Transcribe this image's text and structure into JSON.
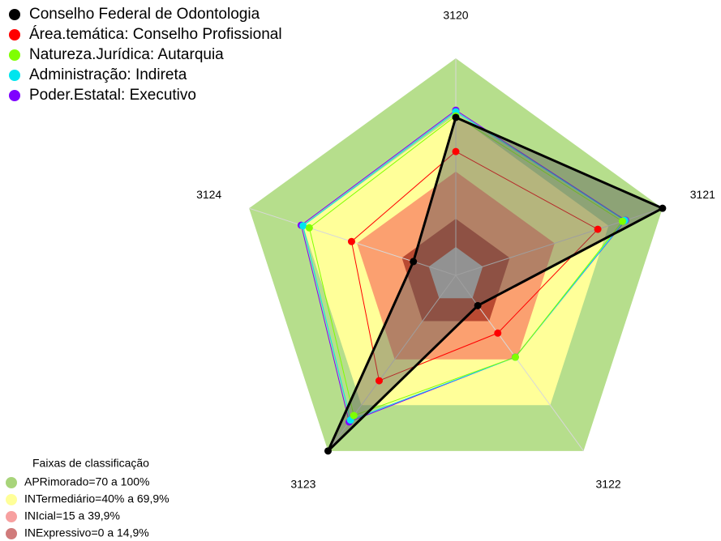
{
  "chart_data": {
    "type": "radar",
    "categories": [
      "3120",
      "3121",
      "3122",
      "3123",
      "3124"
    ],
    "rlim": [
      -15,
      100
    ],
    "series": [
      {
        "name": "Conselho Federal de Odontologia",
        "color": "#000000",
        "values": [
          68.7,
          100,
          4.8,
          100,
          8.6
        ]
      },
      {
        "name": "Área.temática: Conselho Profissional",
        "color": "#ff0000",
        "values": [
          50.6,
          64,
          22.8,
          54,
          43
        ]
      },
      {
        "name": "Natureza.Jurídica: Autarquia",
        "color": "#7fff00",
        "values": [
          69.5,
          77.7,
          38.6,
          76.8,
          66.5
        ]
      },
      {
        "name": "Administração: Indireta",
        "color": "#00e5ee",
        "values": [
          71.7,
          79,
          38.6,
          79.8,
          70
        ]
      },
      {
        "name": "Poder.Estatal: Executivo",
        "color": "#7f00ff",
        "values": [
          72.5,
          79.4,
          38.5,
          81,
          71
        ]
      }
    ],
    "bands_title": "Faixas de classificação",
    "bands": [
      {
        "label": "APRimorado=70 a 100%",
        "from": 70,
        "to": 100,
        "color": "#b6de8c",
        "legend_color": "#a8d47a"
      },
      {
        "label": "INTermediário=40% a 69,9%",
        "from": 40,
        "to": 70,
        "color": "#ffff99",
        "legend_color": "#ffff99"
      },
      {
        "label": "INIcial=15 a 39,9%",
        "from": 15,
        "to": 40,
        "color": "#fba070",
        "legend_color": "#f7a0a0"
      },
      {
        "label": "INExpressivo=0 a 14,9%",
        "from": 0,
        "to": 15,
        "color": "#b94a32",
        "legend_color": "#d07b7b"
      }
    ]
  }
}
